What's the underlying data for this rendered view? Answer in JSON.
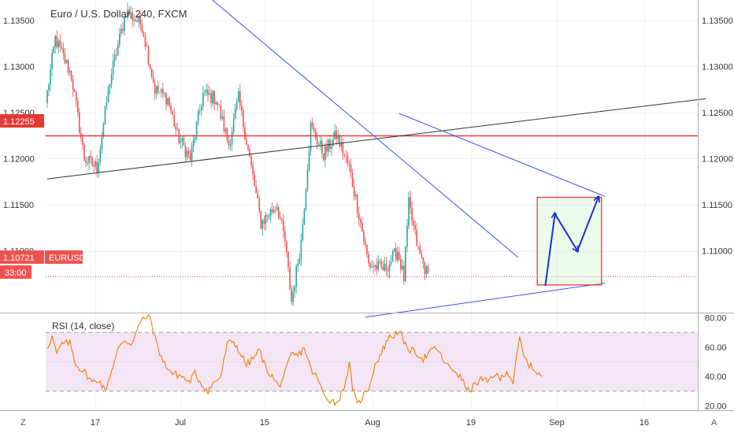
{
  "chart_data": [
    {
      "type": "candlestick",
      "title": "Euro / U.S. Dollar, 240, FXCM",
      "symbol": "EURUSD",
      "y_ticks": [
        "1.13500",
        "1.13000",
        "1.12500",
        "1.12000",
        "1.11500",
        "1.11000"
      ],
      "ylim": [
        1.1033,
        1.1372
      ],
      "x_ticks": [
        "17",
        "Jul",
        "15",
        "Aug",
        "19",
        "Sep",
        "16"
      ],
      "last_price_label": "1.10721",
      "countdown_label": "33:00",
      "horizontal_level_label": "1.12255",
      "horizontal_level": 1.12255,
      "last_price": 1.10721,
      "colors": {
        "up": "#26a69a",
        "down": "#ef5350",
        "level": "#e53935",
        "trendline_blue": "#3f51f5",
        "trendline_black": "#333333",
        "projection": "#1e2dd8"
      },
      "segments": [
        {
          "n": 6,
          "start": 1.126,
          "end": 1.133
        },
        {
          "n": 10,
          "start": 1.133,
          "end": 1.129
        },
        {
          "n": 8,
          "start": 1.129,
          "end": 1.12
        },
        {
          "n": 8,
          "start": 1.12,
          "end": 1.119
        },
        {
          "n": 8,
          "start": 1.119,
          "end": 1.1285
        },
        {
          "n": 10,
          "start": 1.1285,
          "end": 1.136
        },
        {
          "n": 10,
          "start": 1.136,
          "end": 1.1345
        },
        {
          "n": 8,
          "start": 1.1345,
          "end": 1.1275
        },
        {
          "n": 8,
          "start": 1.1275,
          "end": 1.1265
        },
        {
          "n": 6,
          "start": 1.1265,
          "end": 1.1225
        },
        {
          "n": 8,
          "start": 1.1225,
          "end": 1.12
        },
        {
          "n": 8,
          "start": 1.12,
          "end": 1.127
        },
        {
          "n": 8,
          "start": 1.127,
          "end": 1.1265
        },
        {
          "n": 8,
          "start": 1.1265,
          "end": 1.1215
        },
        {
          "n": 6,
          "start": 1.1215,
          "end": 1.1265
        },
        {
          "n": 6,
          "start": 1.1265,
          "end": 1.121
        },
        {
          "n": 8,
          "start": 1.121,
          "end": 1.113
        },
        {
          "n": 10,
          "start": 1.113,
          "end": 1.115
        },
        {
          "n": 5,
          "start": 1.115,
          "end": 1.111
        },
        {
          "n": 4,
          "start": 1.111,
          "end": 1.1045
        },
        {
          "n": 6,
          "start": 1.1045,
          "end": 1.111
        },
        {
          "n": 6,
          "start": 1.111,
          "end": 1.1235
        },
        {
          "n": 8,
          "start": 1.1235,
          "end": 1.1205
        },
        {
          "n": 8,
          "start": 1.1205,
          "end": 1.1225
        },
        {
          "n": 8,
          "start": 1.1225,
          "end": 1.119
        },
        {
          "n": 6,
          "start": 1.119,
          "end": 1.114
        },
        {
          "n": 6,
          "start": 1.114,
          "end": 1.1085
        },
        {
          "n": 10,
          "start": 1.1085,
          "end": 1.108
        },
        {
          "n": 8,
          "start": 1.108,
          "end": 1.11
        },
        {
          "n": 4,
          "start": 1.11,
          "end": 1.107
        },
        {
          "n": 3,
          "start": 1.107,
          "end": 1.115
        },
        {
          "n": 6,
          "start": 1.115,
          "end": 1.11
        },
        {
          "n": 6,
          "start": 1.11,
          "end": 1.1072
        }
      ],
      "lines": [
        {
          "name": "black-trendline",
          "x1_bar": 0,
          "y1": 1.1178,
          "x2_bar": 410,
          "y2": 1.1265
        },
        {
          "name": "upper-blue-trendline",
          "x1_bar": 96,
          "y1": 1.1382,
          "x2_bar": 293,
          "y2": 1.1093
        },
        {
          "name": "triangle-upper",
          "x1_bar": 219,
          "y1": 1.1249,
          "x2_bar": 347,
          "y2": 1.1159
        },
        {
          "name": "triangle-lower",
          "x1_bar": 198,
          "y1": 1.1028,
          "x2_bar": 347,
          "y2": 1.1065
        }
      ],
      "target_box": {
        "x1_bar": 305,
        "x2_bar": 345,
        "y_top": 1.1158,
        "y_bottom": 1.1063
      },
      "projection_path": [
        {
          "bar": 310,
          "y": 1.1062
        },
        {
          "bar": 316,
          "y": 1.114
        },
        {
          "bar": 330,
          "y": 1.11
        },
        {
          "bar": 343,
          "y": 1.1158
        }
      ]
    },
    {
      "type": "line",
      "title": "RSI (14, close)",
      "y_ticks": [
        "80.00",
        "60.00",
        "40.00",
        "20.00"
      ],
      "ylim": [
        17,
        83
      ],
      "band": [
        30,
        70
      ],
      "midline": 50,
      "colors": {
        "line": "#f57c00",
        "band": "#f3e5f5",
        "band_border": "#9e9e9e"
      },
      "keypoints": [
        {
          "bar": 0,
          "v": 60
        },
        {
          "bar": 3,
          "v": 67
        },
        {
          "bar": 6,
          "v": 55
        },
        {
          "bar": 9,
          "v": 62
        },
        {
          "bar": 14,
          "v": 63
        },
        {
          "bar": 18,
          "v": 48
        },
        {
          "bar": 24,
          "v": 42
        },
        {
          "bar": 28,
          "v": 36
        },
        {
          "bar": 32,
          "v": 38
        },
        {
          "bar": 36,
          "v": 30
        },
        {
          "bar": 40,
          "v": 44
        },
        {
          "bar": 44,
          "v": 58
        },
        {
          "bar": 48,
          "v": 65
        },
        {
          "bar": 52,
          "v": 62
        },
        {
          "bar": 56,
          "v": 72
        },
        {
          "bar": 60,
          "v": 80
        },
        {
          "bar": 64,
          "v": 81
        },
        {
          "bar": 67,
          "v": 66
        },
        {
          "bar": 72,
          "v": 50
        },
        {
          "bar": 78,
          "v": 42
        },
        {
          "bar": 84,
          "v": 40
        },
        {
          "bar": 88,
          "v": 36
        },
        {
          "bar": 92,
          "v": 42
        },
        {
          "bar": 96,
          "v": 35
        },
        {
          "bar": 100,
          "v": 30
        },
        {
          "bar": 104,
          "v": 36
        },
        {
          "bar": 108,
          "v": 40
        },
        {
          "bar": 112,
          "v": 62
        },
        {
          "bar": 116,
          "v": 64
        },
        {
          "bar": 120,
          "v": 56
        },
        {
          "bar": 124,
          "v": 48
        },
        {
          "bar": 128,
          "v": 52
        },
        {
          "bar": 132,
          "v": 58
        },
        {
          "bar": 136,
          "v": 46
        },
        {
          "bar": 140,
          "v": 40
        },
        {
          "bar": 144,
          "v": 33
        },
        {
          "bar": 148,
          "v": 42
        },
        {
          "bar": 152,
          "v": 55
        },
        {
          "bar": 156,
          "v": 54
        },
        {
          "bar": 160,
          "v": 60
        },
        {
          "bar": 164,
          "v": 45
        },
        {
          "bar": 168,
          "v": 39
        },
        {
          "bar": 172,
          "v": 28
        },
        {
          "bar": 176,
          "v": 24
        },
        {
          "bar": 180,
          "v": 22
        },
        {
          "bar": 184,
          "v": 30
        },
        {
          "bar": 188,
          "v": 48
        },
        {
          "bar": 190,
          "v": 33
        },
        {
          "bar": 193,
          "v": 20
        },
        {
          "bar": 196,
          "v": 26
        },
        {
          "bar": 200,
          "v": 32
        },
        {
          "bar": 204,
          "v": 48
        },
        {
          "bar": 208,
          "v": 56
        },
        {
          "bar": 212,
          "v": 66
        },
        {
          "bar": 216,
          "v": 68
        },
        {
          "bar": 219,
          "v": 72
        },
        {
          "bar": 222,
          "v": 62
        },
        {
          "bar": 226,
          "v": 58
        },
        {
          "bar": 230,
          "v": 56
        },
        {
          "bar": 234,
          "v": 52
        },
        {
          "bar": 238,
          "v": 56
        },
        {
          "bar": 242,
          "v": 60
        },
        {
          "bar": 246,
          "v": 52
        },
        {
          "bar": 250,
          "v": 46
        },
        {
          "bar": 254,
          "v": 44
        },
        {
          "bar": 258,
          "v": 38
        },
        {
          "bar": 262,
          "v": 30
        },
        {
          "bar": 266,
          "v": 34
        },
        {
          "bar": 270,
          "v": 38
        },
        {
          "bar": 274,
          "v": 36
        },
        {
          "bar": 278,
          "v": 42
        },
        {
          "bar": 282,
          "v": 38
        },
        {
          "bar": 286,
          "v": 44
        },
        {
          "bar": 290,
          "v": 36
        },
        {
          "bar": 294,
          "v": 66
        },
        {
          "bar": 297,
          "v": 52
        },
        {
          "bar": 300,
          "v": 48
        },
        {
          "bar": 304,
          "v": 44
        },
        {
          "bar": 308,
          "v": 40
        }
      ]
    }
  ],
  "header": {
    "title": "Euro / U.S. Dollar, 240, FXCM"
  },
  "rsi": {
    "title": "RSI (14, close)"
  },
  "price_badges": {
    "level": "1.12255",
    "last": "1.10721",
    "symbol": "EURUSD",
    "countdown": "33:00"
  },
  "footer": {
    "left_button": "Z",
    "right_button": "A"
  }
}
